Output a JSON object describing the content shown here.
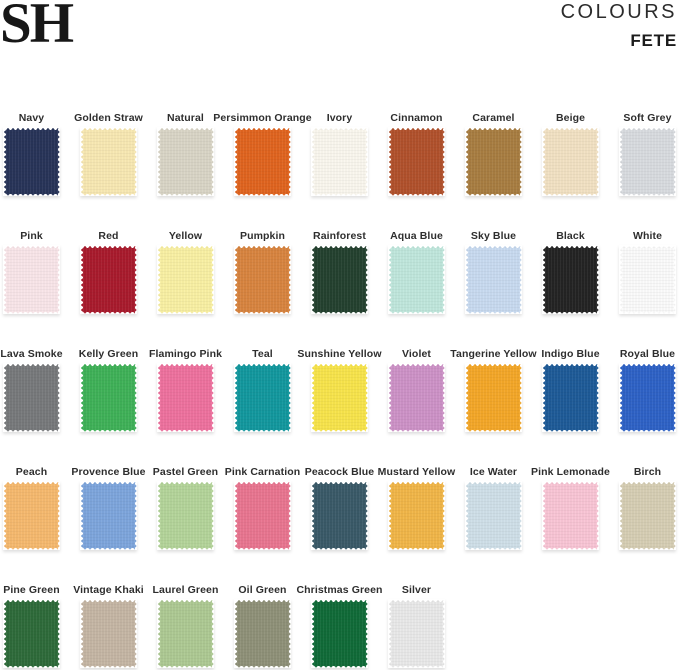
{
  "header": {
    "logo": "SH",
    "collection_label": "COLOURS",
    "collection_name": "FETE"
  },
  "palette": {
    "rows": [
      [
        {
          "name": "Navy",
          "color": "#283459"
        },
        {
          "name": "Golden Straw",
          "color": "#f8e8b2"
        },
        {
          "name": "Natural",
          "color": "#d9d5c6"
        },
        {
          "name": "Persimmon Orange",
          "color": "#e0641f"
        },
        {
          "name": "Ivory",
          "color": "#faf7ee"
        },
        {
          "name": "Cinnamon",
          "color": "#b1512c"
        },
        {
          "name": "Caramel",
          "color": "#a87d41"
        },
        {
          "name": "Beige",
          "color": "#f2e1c3"
        },
        {
          "name": "Soft Grey",
          "color": "#d8dbdf"
        }
      ],
      [
        {
          "name": "Pink",
          "color": "#f9e5e9"
        },
        {
          "name": "Red",
          "color": "#a91b2d"
        },
        {
          "name": "Yellow",
          "color": "#f9f0a3"
        },
        {
          "name": "Pumpkin",
          "color": "#d8843f"
        },
        {
          "name": "Rainforest",
          "color": "#24412f"
        },
        {
          "name": "Aqua Blue",
          "color": "#c0e7dc"
        },
        {
          "name": "Sky Blue",
          "color": "#c8daf0"
        },
        {
          "name": "Black",
          "color": "#242424"
        },
        {
          "name": "White",
          "color": "#fbfbfb"
        }
      ],
      [
        {
          "name": "Lava Smoke",
          "color": "#77797b"
        },
        {
          "name": "Kelly Green",
          "color": "#3fb158"
        },
        {
          "name": "Flamingo Pink",
          "color": "#ee719e"
        },
        {
          "name": "Teal",
          "color": "#12989e"
        },
        {
          "name": "Sunshine Yellow",
          "color": "#f8e44b"
        },
        {
          "name": "Violet",
          "color": "#cd92c7"
        },
        {
          "name": "Tangerine Yellow",
          "color": "#f4a728"
        },
        {
          "name": "Indigo Blue",
          "color": "#1e5b98"
        },
        {
          "name": "Royal Blue",
          "color": "#2e62c6"
        }
      ],
      [
        {
          "name": "Peach",
          "color": "#f6b96e"
        },
        {
          "name": "Provence Blue",
          "color": "#7da5dc"
        },
        {
          "name": "Pastel Green",
          "color": "#b4d49a"
        },
        {
          "name": "Pink Carnation",
          "color": "#e97590"
        },
        {
          "name": "Peacock Blue",
          "color": "#3a5a68"
        },
        {
          "name": "Mustard Yellow",
          "color": "#f1b648"
        },
        {
          "name": "Ice Water",
          "color": "#cfdfe8"
        },
        {
          "name": "Pink Lemonade",
          "color": "#f9c5d5"
        },
        {
          "name": "Birch",
          "color": "#d6ceb4"
        }
      ],
      [
        {
          "name": "Pine Green",
          "color": "#2e6b3a"
        },
        {
          "name": "Vintage Khaki",
          "color": "#c5b6a4"
        },
        {
          "name": "Laurel Green",
          "color": "#adc993"
        },
        {
          "name": "Oil Green",
          "color": "#8f9178"
        },
        {
          "name": "Christmas Green",
          "color": "#106b38"
        },
        {
          "name": "Silver",
          "color": "#e9e9e9"
        }
      ]
    ]
  }
}
